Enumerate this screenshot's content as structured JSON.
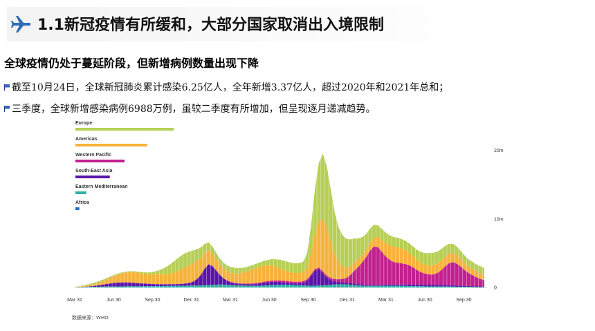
{
  "header": {
    "title": "1.1新冠疫情有所缓和，大部分国家取消出入境限制",
    "icon": "airplane-icon",
    "accent": "#2f6db5"
  },
  "content": {
    "subheading": "全球疫情仍处于蔓延阶段，但新增病例数量出现下降",
    "bullets": [
      "截至10月24日，全球新冠肺炎累计感染6.25亿人，全年新增3.37亿人，超过2020年和2021年总和；",
      "三季度，全球新增感染病例6988万例，虽较二季度有所增加，但呈现逐月递减趋势。"
    ],
    "source": "数据来源：WHO"
  },
  "chart_data": {
    "type": "area",
    "stacked": true,
    "legend_placement": "top-left",
    "x_ticks": [
      "Mar 31",
      "Jun 30",
      "Sep 30",
      "Dec 31",
      "Mar 31",
      "Jun 30",
      "Sep 30",
      "Dec 31",
      "Mar 31",
      "Jun 30",
      "Sep 30"
    ],
    "y_ticks": [
      "20m",
      "10m",
      "0"
    ],
    "ylim": [
      0,
      23000000
    ],
    "x_count": 105,
    "series": [
      {
        "name": "Africa",
        "color": "#1f6fd1",
        "legend_value": 0.4,
        "values": [
          0,
          0,
          0,
          0,
          0,
          0,
          0,
          0,
          0,
          0,
          0,
          0,
          0,
          0,
          0,
          0,
          0,
          0,
          0,
          0,
          0,
          0,
          0,
          0,
          0,
          0,
          0,
          0,
          0,
          0,
          0,
          0,
          0,
          0,
          0,
          0,
          0,
          0,
          0,
          0,
          0,
          0,
          0,
          0,
          0,
          0,
          0,
          0,
          0,
          0,
          0,
          0,
          0,
          0,
          0,
          0,
          0,
          0,
          0,
          0,
          0,
          0,
          0,
          0,
          0,
          0,
          0,
          0,
          0,
          0,
          0,
          0,
          0,
          0,
          0,
          0,
          0,
          0,
          0,
          0,
          0,
          0,
          0,
          0,
          0,
          0,
          0,
          0,
          0,
          0,
          0,
          0,
          0,
          0,
          0,
          0,
          0,
          0,
          0,
          0,
          0,
          0,
          0,
          0,
          0
        ]
      },
      {
        "name": "Eastern Mediterranean",
        "color": "#2ab0a4",
        "legend_value": 1.1,
        "values": [
          20000,
          30000,
          50000,
          70000,
          80000,
          90000,
          100000,
          110000,
          120000,
          130000,
          140000,
          150000,
          150000,
          160000,
          160000,
          160000,
          160000,
          160000,
          170000,
          170000,
          180000,
          190000,
          200000,
          210000,
          220000,
          220000,
          230000,
          240000,
          250000,
          260000,
          270000,
          280000,
          300000,
          320000,
          350000,
          380000,
          400000,
          420000,
          410000,
          380000,
          340000,
          300000,
          280000,
          260000,
          250000,
          240000,
          240000,
          250000,
          270000,
          300000,
          330000,
          360000,
          390000,
          410000,
          400000,
          370000,
          340000,
          310000,
          280000,
          260000,
          250000,
          250000,
          270000,
          300000,
          340000,
          380000,
          420000,
          450000,
          460000,
          440000,
          400000,
          350000,
          300000,
          260000,
          230000,
          220000,
          220000,
          230000,
          240000,
          250000,
          250000,
          240000,
          230000,
          220000,
          210000,
          200000,
          190000,
          180000,
          170000,
          160000,
          150000,
          150000,
          140000,
          140000,
          130000,
          120000,
          110000,
          100000,
          90000,
          80000,
          70000,
          60000,
          50000,
          40000,
          30000
        ]
      },
      {
        "name": "South-East Asia",
        "color": "#5b14a8",
        "legend_value": 3.5,
        "values": [
          0,
          10000,
          20000,
          40000,
          80000,
          130000,
          200000,
          280000,
          370000,
          450000,
          520000,
          560000,
          580000,
          580000,
          560000,
          520000,
          470000,
          420000,
          380000,
          340000,
          300000,
          270000,
          250000,
          240000,
          230000,
          230000,
          240000,
          260000,
          300000,
          380000,
          550000,
          900000,
          1500000,
          2400000,
          3000000,
          2700000,
          2000000,
          1300000,
          800000,
          500000,
          350000,
          280000,
          240000,
          220000,
          210000,
          230000,
          280000,
          340000,
          420000,
          480000,
          500000,
          470000,
          420000,
          360000,
          300000,
          260000,
          250000,
          280000,
          400000,
          700000,
          1400000,
          2200000,
          2400000,
          1800000,
          1100000,
          700000,
          450000,
          330000,
          270000,
          240000,
          220000,
          200000,
          190000,
          180000,
          170000,
          160000,
          150000,
          150000,
          150000,
          150000,
          160000,
          170000,
          180000,
          190000,
          200000,
          210000,
          220000,
          230000,
          240000,
          250000,
          250000,
          250000,
          240000,
          230000,
          220000,
          200000,
          180000,
          170000,
          160000,
          150000,
          140000,
          130000,
          120000,
          110000,
          100000
        ]
      },
      {
        "name": "Western Pacific",
        "color": "#c2208f",
        "legend_value": 5.0,
        "values": [
          10000,
          10000,
          10000,
          10000,
          10000,
          10000,
          10000,
          10000,
          10000,
          10000,
          10000,
          10000,
          10000,
          10000,
          10000,
          10000,
          10000,
          10000,
          10000,
          10000,
          20000,
          20000,
          20000,
          20000,
          20000,
          30000,
          30000,
          30000,
          30000,
          30000,
          30000,
          40000,
          40000,
          40000,
          40000,
          40000,
          40000,
          50000,
          50000,
          50000,
          60000,
          60000,
          70000,
          80000,
          90000,
          100000,
          110000,
          120000,
          130000,
          140000,
          160000,
          180000,
          200000,
          210000,
          220000,
          230000,
          230000,
          230000,
          230000,
          230000,
          230000,
          230000,
          240000,
          250000,
          270000,
          300000,
          340000,
          400000,
          500000,
          700000,
          1200000,
          1900000,
          2500000,
          3200000,
          4000000,
          5000000,
          5600000,
          5500000,
          4800000,
          4100000,
          3600000,
          3300000,
          3200000,
          3100000,
          3000000,
          2800000,
          2500000,
          2100000,
          1800000,
          1600000,
          1500000,
          1500000,
          1700000,
          2100000,
          2700000,
          3200000,
          3400000,
          3200000,
          2800000,
          2300000,
          1900000,
          1600000,
          1300000,
          1100000,
          900000
        ]
      },
      {
        "name": "Americas",
        "color": "#f7b23b",
        "legend_value": 7.3,
        "values": [
          30000,
          50000,
          80000,
          120000,
          180000,
          250000,
          350000,
          470000,
          620000,
          800000,
          980000,
          1150000,
          1300000,
          1420000,
          1500000,
          1530000,
          1500000,
          1450000,
          1400000,
          1380000,
          1380000,
          1400000,
          1420000,
          1450000,
          1520000,
          1650000,
          1850000,
          2100000,
          2350000,
          2550000,
          2650000,
          2600000,
          2450000,
          2250000,
          2050000,
          1850000,
          1650000,
          1500000,
          1400000,
          1350000,
          1350000,
          1400000,
          1500000,
          1650000,
          1850000,
          2050000,
          2200000,
          2300000,
          2350000,
          2300000,
          2200000,
          2000000,
          1800000,
          1600000,
          1450000,
          1350000,
          1300000,
          1300000,
          1350000,
          1600000,
          3000000,
          5200000,
          6800000,
          7600000,
          7000000,
          5500000,
          3800000,
          2600000,
          1900000,
          1500000,
          1300000,
          1200000,
          1150000,
          1100000,
          1100000,
          1150000,
          1300000,
          1500000,
          1750000,
          2000000,
          2150000,
          2250000,
          2250000,
          2150000,
          2000000,
          1800000,
          1600000,
          1450000,
          1350000,
          1300000,
          1300000,
          1350000,
          1400000,
          1450000,
          1450000,
          1400000,
          1350000,
          1250000,
          1150000,
          1050000,
          950000,
          900000,
          850000,
          800000,
          750000
        ]
      },
      {
        "name": "Europe",
        "color": "#b6cf55",
        "legend_value": 10.0,
        "values": [
          30000,
          60000,
          100000,
          150000,
          200000,
          230000,
          250000,
          240000,
          220000,
          200000,
          180000,
          160000,
          150000,
          140000,
          140000,
          150000,
          170000,
          200000,
          240000,
          300000,
          400000,
          550000,
          750000,
          1000000,
          1300000,
          1600000,
          1850000,
          2000000,
          2050000,
          2000000,
          1900000,
          1750000,
          1550000,
          1350000,
          1150000,
          1000000,
          900000,
          850000,
          850000,
          850000,
          850000,
          800000,
          750000,
          700000,
          650000,
          620000,
          620000,
          650000,
          700000,
          800000,
          950000,
          1100000,
          1250000,
          1350000,
          1400000,
          1400000,
          1400000,
          1450000,
          1500000,
          2200000,
          4000000,
          6500000,
          8500000,
          9600000,
          9000000,
          7500000,
          6000000,
          5000000,
          4500000,
          4200000,
          3900000,
          3500000,
          3000000,
          2600000,
          2300000,
          2100000,
          1900000,
          1700000,
          1600000,
          1500000,
          1450000,
          1400000,
          1400000,
          1400000,
          1400000,
          1400000,
          1450000,
          1500000,
          1600000,
          1700000,
          1800000,
          1800000,
          1750000,
          1650000,
          1550000,
          1450000,
          1350000,
          1250000,
          1150000,
          1100000,
          1050000,
          1050000,
          1050000,
          1050000,
          1050000
        ]
      }
    ]
  }
}
